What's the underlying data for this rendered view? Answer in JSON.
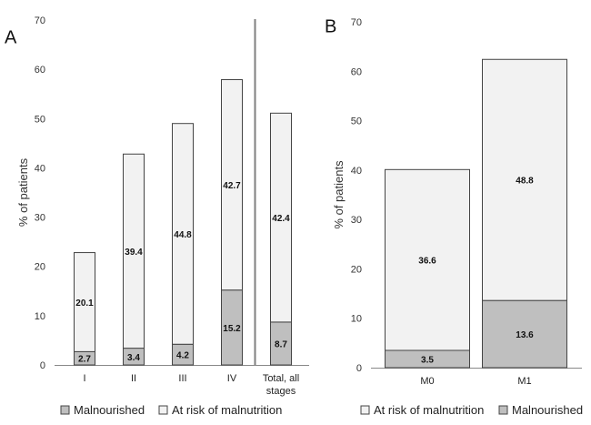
{
  "colors": {
    "malnourished": "#bfbfbf",
    "at_risk": "#f2f2f2",
    "bar_stroke": "#444444",
    "axis": "#888888",
    "divider": "#7f7f7f"
  },
  "chart_data": [
    {
      "panel": "A",
      "type": "bar",
      "stacked": true,
      "categories": [
        "I",
        "II",
        "III",
        "IV",
        "Total, all stages"
      ],
      "series": [
        {
          "name": "Malnourished",
          "values": [
            2.7,
            3.4,
            4.2,
            15.2,
            8.7
          ]
        },
        {
          "name": "At risk of malnutrition",
          "values": [
            20.1,
            39.4,
            44.8,
            42.7,
            42.4
          ]
        }
      ],
      "ylabel": "% of patients",
      "ylim": [
        0,
        70
      ],
      "yticks": [
        0,
        10,
        20,
        30,
        40,
        50,
        60,
        70
      ],
      "legend": {
        "placement": "bottom",
        "entries": [
          "Malnourished",
          "At risk of malnutrition"
        ]
      }
    },
    {
      "panel": "B",
      "type": "bar",
      "stacked": true,
      "categories": [
        "M0",
        "M1"
      ],
      "series": [
        {
          "name": "Malnourished",
          "values": [
            3.5,
            13.6
          ]
        },
        {
          "name": "At risk of malnutrition",
          "values": [
            36.6,
            48.8
          ]
        }
      ],
      "ylabel": "% of patients",
      "ylim": [
        0,
        70
      ],
      "yticks": [
        0,
        10,
        20,
        30,
        40,
        50,
        60,
        70
      ],
      "legend": {
        "placement": "bottom",
        "entries": [
          "At risk of malnutrition",
          "Malnourished"
        ]
      }
    }
  ]
}
